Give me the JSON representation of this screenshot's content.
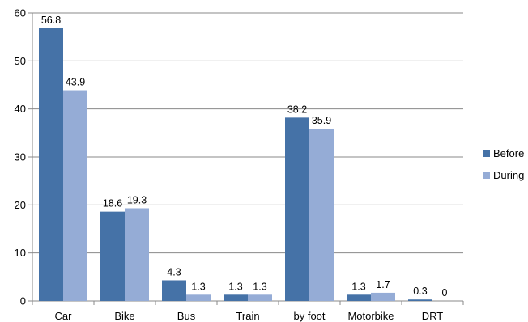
{
  "chart_data": {
    "type": "bar",
    "title": "",
    "xlabel": "",
    "ylabel": "",
    "categories": [
      "Car",
      "Bike",
      "Bus",
      "Train",
      "by foot",
      "Motorbike",
      "DRT"
    ],
    "series": [
      {
        "name": "Before",
        "values": [
          56.8,
          18.6,
          4.3,
          1.3,
          38.2,
          1.3,
          0.3
        ],
        "labels": [
          "56.8",
          "18.6",
          "4.3",
          "1.3",
          "38.2",
          "1.3",
          "0.3"
        ],
        "color": "#4572A7"
      },
      {
        "name": "During",
        "values": [
          43.9,
          19.3,
          1.3,
          1.3,
          35.9,
          1.7,
          0
        ],
        "labels": [
          "43.9",
          "19.3",
          "1.3",
          "1.3",
          "35.9",
          "1.7",
          "0"
        ],
        "color": "#95ACD6"
      }
    ],
    "ylim": [
      0,
      60
    ],
    "yticks": [
      "0",
      "10",
      "20",
      "30",
      "40",
      "50",
      "60"
    ],
    "grid": true,
    "legend_position": "right"
  }
}
